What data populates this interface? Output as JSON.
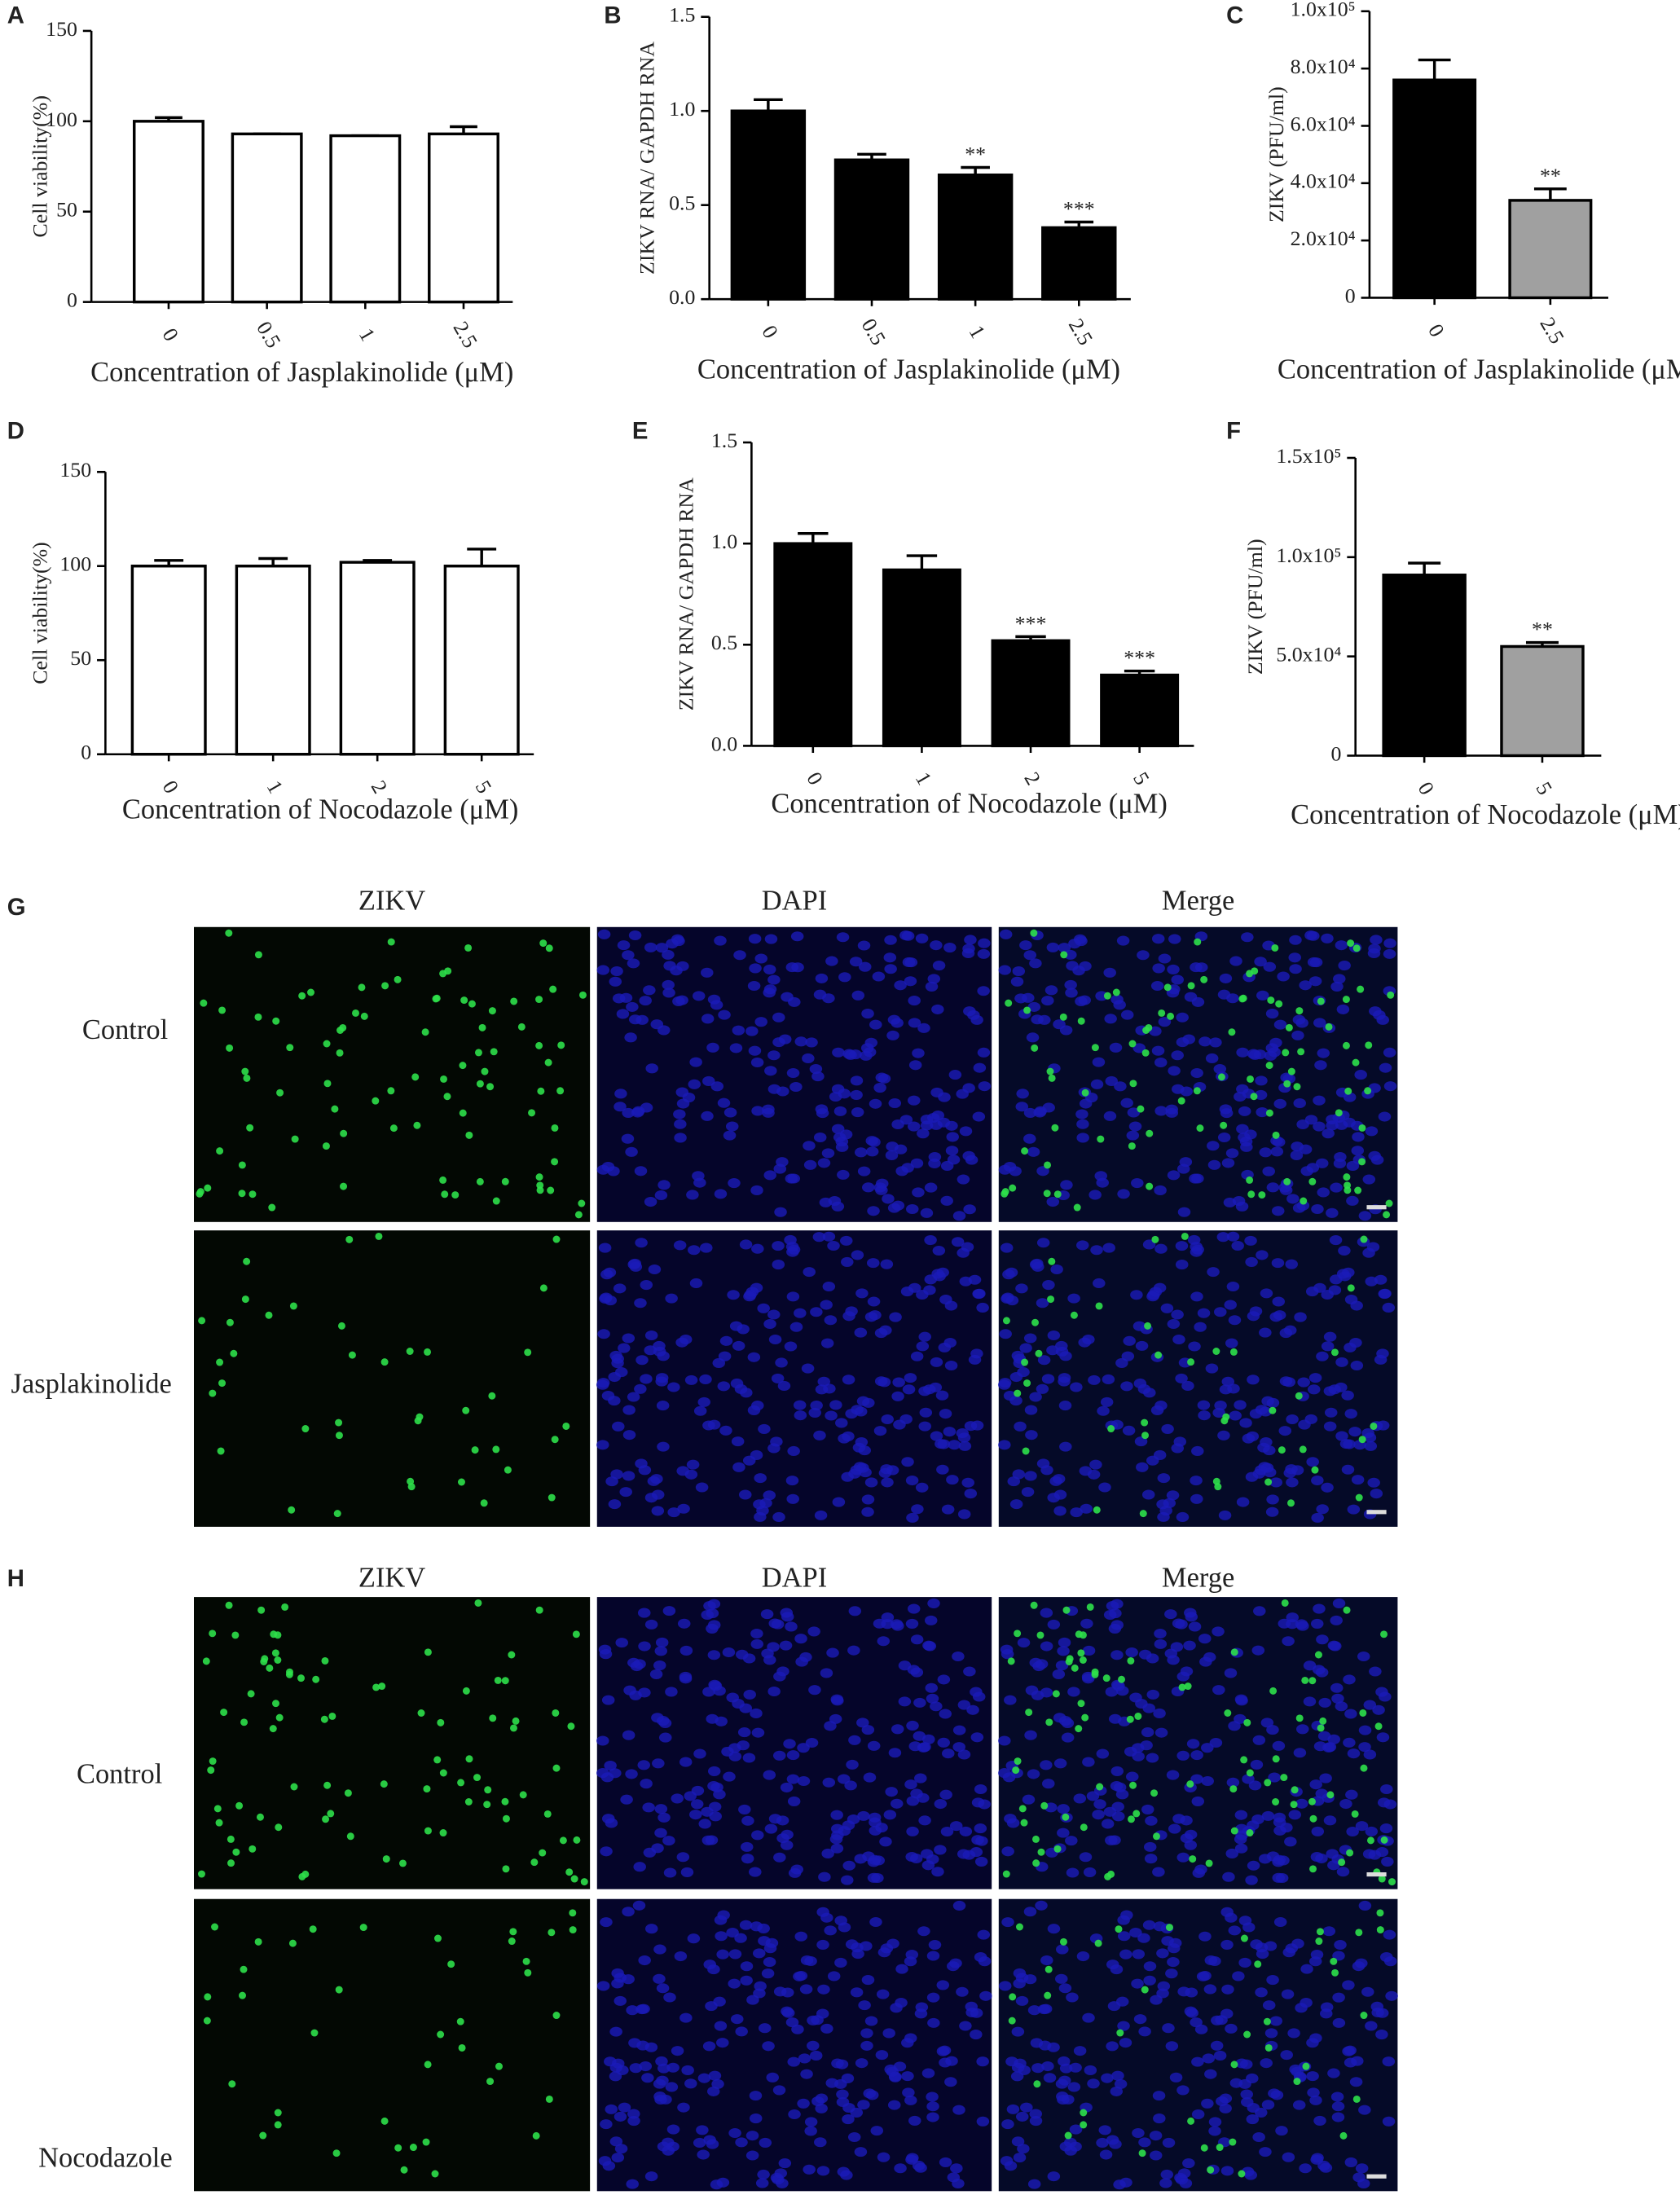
{
  "chart_data": [
    {
      "type": "bar",
      "panel": "A",
      "ylabel": "Cell viability(%)",
      "xlabel": "Concentration of Jasplakinolide (μM)",
      "categories": [
        "0",
        "0.5",
        "1",
        "2.5"
      ],
      "values": [
        100,
        93,
        92,
        93
      ],
      "errors": [
        2,
        0,
        0,
        4
      ],
      "colors": [
        "#ffffff",
        "#ffffff",
        "#ffffff",
        "#ffffff"
      ],
      "ylim": [
        0,
        150
      ],
      "yticks": [
        0,
        50,
        100,
        150
      ]
    },
    {
      "type": "bar",
      "panel": "B",
      "ylabel": "ZIKV RNA/ GAPDH RNA",
      "xlabel": "Concentration of Jasplakinolide (μM)",
      "categories": [
        "0",
        "0.5",
        "1",
        "2.5"
      ],
      "values": [
        1.0,
        0.74,
        0.66,
        0.38
      ],
      "errors": [
        0.06,
        0.03,
        0.04,
        0.03
      ],
      "annotations": [
        null,
        null,
        "**",
        "***"
      ],
      "colors": [
        "#000000",
        "#000000",
        "#000000",
        "#000000"
      ],
      "ylim": [
        0,
        1.5
      ],
      "yticks": [
        {
          "value": 0,
          "label": "0.0"
        },
        0.5,
        {
          "value": 1,
          "label": "1.0"
        },
        1.5
      ]
    },
    {
      "type": "bar",
      "panel": "C",
      "ylabel": "ZIKV (PFU/ml)",
      "xlabel": "Concentration of Jasplakinolide (μM)",
      "categories": [
        "0",
        "2.5"
      ],
      "values": [
        76000,
        34000
      ],
      "errors": [
        7000,
        4000
      ],
      "annotations": [
        null,
        "**"
      ],
      "colors": [
        "#000000",
        "#a0a0a0"
      ],
      "ylim": [
        0,
        100000
      ],
      "yticks": [
        0,
        {
          "value": 20000,
          "label": "2.0x10⁴"
        },
        {
          "value": 40000,
          "label": "4.0x10⁴"
        },
        {
          "value": 60000,
          "label": "6.0x10⁴"
        },
        {
          "value": 80000,
          "label": "8.0x10⁴"
        },
        {
          "value": 100000,
          "label": "1.0x10⁵"
        }
      ]
    },
    {
      "type": "bar",
      "panel": "D",
      "ylabel": "Cell viability(%)",
      "xlabel": "Concentration of Nocodazole (μM)",
      "categories": [
        "0",
        "1",
        "2",
        "5"
      ],
      "values": [
        100,
        100,
        102,
        100
      ],
      "errors": [
        3,
        4,
        1,
        9
      ],
      "colors": [
        "#ffffff",
        "#ffffff",
        "#ffffff",
        "#ffffff"
      ],
      "ylim": [
        0,
        150
      ],
      "yticks": [
        0,
        50,
        100,
        150
      ]
    },
    {
      "type": "bar",
      "panel": "E",
      "ylabel": "ZIKV RNA/ GAPDH RNA",
      "xlabel": "Concentration of Nocodazole (μM)",
      "categories": [
        "0",
        "1",
        "2",
        "5"
      ],
      "values": [
        1.0,
        0.87,
        0.52,
        0.35
      ],
      "errors": [
        0.05,
        0.07,
        0.02,
        0.02
      ],
      "annotations": [
        null,
        null,
        "***",
        "***"
      ],
      "colors": [
        "#000000",
        "#000000",
        "#000000",
        "#000000"
      ],
      "ylim": [
        0,
        1.5
      ],
      "yticks": [
        {
          "value": 0,
          "label": "0.0"
        },
        0.5,
        {
          "value": 1,
          "label": "1.0"
        },
        1.5
      ]
    },
    {
      "type": "bar",
      "panel": "F",
      "ylabel": "ZIKV (PFU/ml)",
      "xlabel": "Concentration of Nocodazole (μM)",
      "categories": [
        "0",
        "5"
      ],
      "values": [
        91000,
        55000
      ],
      "errors": [
        6000,
        2000
      ],
      "annotations": [
        null,
        "**"
      ],
      "colors": [
        "#000000",
        "#a0a0a0"
      ],
      "ylim": [
        0,
        150000
      ],
      "yticks": [
        0,
        {
          "value": 50000,
          "label": "5.0x10⁴"
        },
        {
          "value": 100000,
          "label": "1.0x10⁵"
        },
        {
          "value": 150000,
          "label": "1.5x10⁵"
        }
      ]
    }
  ],
  "micrographs": [
    {
      "panel": "G",
      "columns": [
        "ZIKV",
        "DAPI",
        "Merge"
      ],
      "rows": [
        "Control",
        "Jasplakinolide"
      ]
    },
    {
      "panel": "H",
      "columns": [
        "ZIKV",
        "DAPI",
        "Merge"
      ],
      "rows": [
        "Control",
        "Nocodazole"
      ]
    }
  ]
}
